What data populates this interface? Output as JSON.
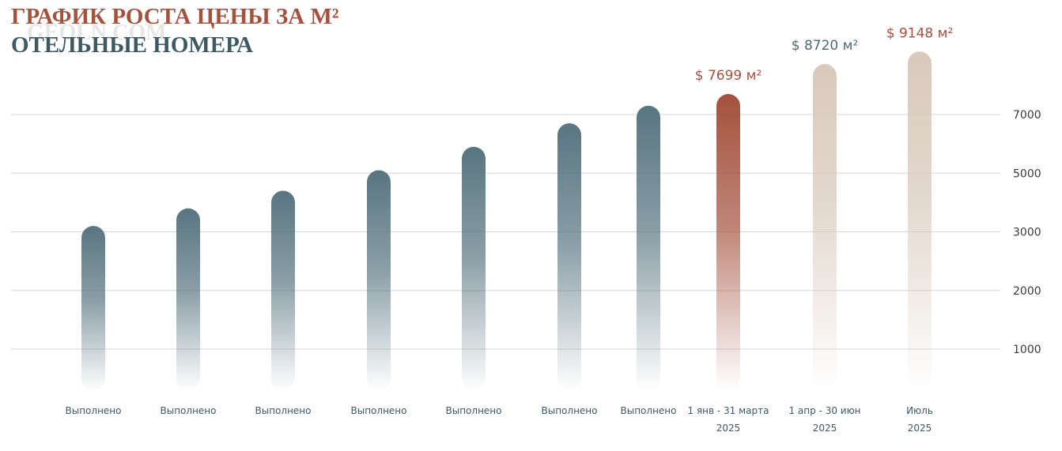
{
  "chart_data": {
    "type": "bar",
    "title": "ГРАФИК РОСТА ЦЕНЫ ЗА М²",
    "subtitle": "ОТЕЛЬНЫЕ НОМЕРА",
    "watermark": "GEOLN.COM",
    "categories": [
      "Выполнено",
      "Выполнено",
      "Выполнено",
      "Выполнено",
      "Выполнено",
      "Выполнено",
      "Выполнено",
      "1 янв - 31 марта",
      "1 апр - 30 июн",
      "Июль"
    ],
    "sublabels": [
      null,
      null,
      null,
      null,
      null,
      null,
      null,
      "2025",
      "2025",
      "2025"
    ],
    "values": [
      3200,
      3800,
      4400,
      5100,
      5900,
      6700,
      7300,
      7699,
      8720,
      9148
    ],
    "value_labels": [
      null,
      null,
      null,
      null,
      null,
      null,
      null,
      "$ 7699 м²",
      "$ 8720 м²",
      "$ 9148 м²"
    ],
    "colors": [
      "#587580",
      "#587580",
      "#587580",
      "#587580",
      "#587580",
      "#587580",
      "#587580",
      "#a4513d",
      "#d8c9bb",
      "#d8c9bb"
    ],
    "label_colors": [
      null,
      null,
      null,
      null,
      null,
      null,
      null,
      "#a4513d",
      "#4f6a73",
      "#a4513d"
    ],
    "ylim": [
      0,
      10000
    ],
    "yticks": [
      1000,
      2000,
      3000,
      5000,
      7000
    ],
    "grid": true
  }
}
